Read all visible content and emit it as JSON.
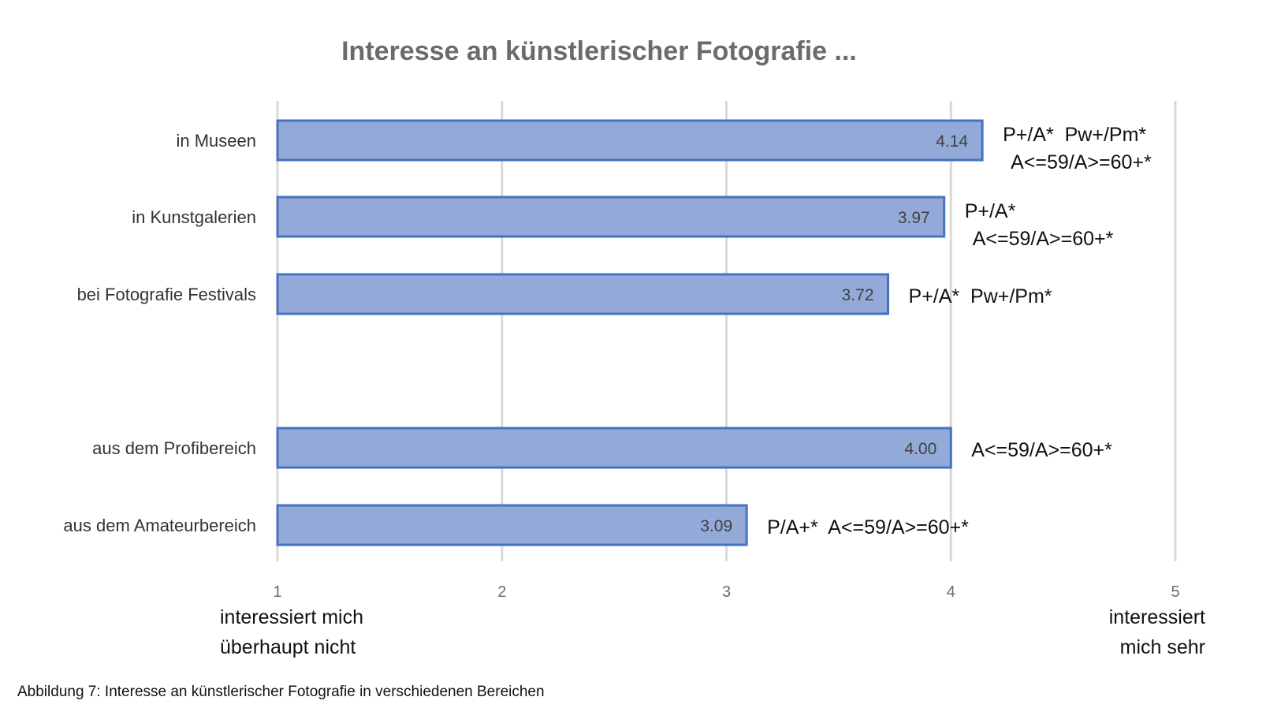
{
  "chart_data": {
    "type": "bar",
    "orientation": "horizontal",
    "title": "Interesse an künstlerischer Fotografie ...",
    "categories": [
      "in Museen",
      "in Kunstgalerien",
      "bei Fotografie Festivals",
      "aus dem Profibereich",
      "aus dem Amateurbereich"
    ],
    "values": [
      4.14,
      3.97,
      3.72,
      4.0,
      3.09
    ],
    "data_labels": [
      "4.14",
      "3.97",
      "3.72",
      "4.00",
      "3.09"
    ],
    "annotations": [
      [
        "P+/A*  Pw+/Pm*",
        "A<=59/A>=60+*"
      ],
      [
        "P+/A*",
        "A<=59/A>=60+*"
      ],
      [
        "P+/A*  Pw+/Pm*"
      ],
      [
        "A<=59/A>=60+*"
      ],
      [
        "P/A+*  A<=59/A>=60+*"
      ]
    ],
    "xlim": [
      1,
      5
    ],
    "xticks": [
      "1",
      "2",
      "3",
      "4",
      "5"
    ],
    "grid": true,
    "x_anchor_left": [
      "interessiert mich",
      "überhaupt nicht"
    ],
    "x_anchor_right": [
      "interessiert",
      "mich sehr"
    ],
    "colors": {
      "bar_fill": "#93aad9",
      "bar_stroke": "#4472c4",
      "grid": "#d9d9d9"
    }
  },
  "caption": "Abbildung 7: Interesse an künstlerischer Fotografie in verschiedenen Bereichen"
}
